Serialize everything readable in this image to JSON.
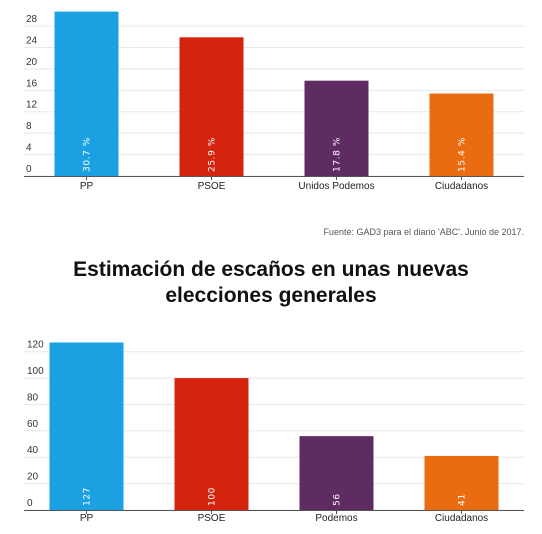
{
  "source_note": "Fuente: GAD3 para el diario 'ABC'. Junio de 2017.",
  "title_lines": [
    "Estimación de escaños en unas nuevas",
    "elecciones generales"
  ],
  "colors": {
    "PP": "#1ba1e2",
    "PSOE": "#d4240e",
    "Podemos": "#5e2b63",
    "Ciudadanos": "#ea6c10",
    "grid": "#e8e8e8",
    "axis": "#555555"
  },
  "chart_data": [
    {
      "type": "bar",
      "title": "",
      "categories": [
        "PP",
        "PSOE",
        "Unidos Podemos",
        "Ciudadanos"
      ],
      "values": [
        30.7,
        25.9,
        17.8,
        15.4
      ],
      "value_labels": [
        "30.7 %",
        "25.9 %",
        "17.8 %",
        "15.4 %"
      ],
      "ylim": [
        0,
        30
      ],
      "yticks": [
        0,
        4,
        8,
        12,
        16,
        20,
        24,
        28
      ],
      "grid": true,
      "legend": "none",
      "bar_colors": [
        "#1ba1e2",
        "#d4240e",
        "#5e2b63",
        "#ea6c10"
      ]
    },
    {
      "type": "bar",
      "title": "Estimación de escaños en unas nuevas elecciones generales",
      "categories": [
        "PP",
        "PSOE",
        "Podemos",
        "Ciudadanos"
      ],
      "values": [
        127,
        100,
        56,
        41
      ],
      "value_labels": [
        "127",
        "100",
        "56",
        "41"
      ],
      "ylim": [
        0,
        130
      ],
      "yticks": [
        0,
        20,
        40,
        60,
        80,
        100,
        120
      ],
      "grid": true,
      "legend": "none",
      "bar_colors": [
        "#1ba1e2",
        "#d4240e",
        "#5e2b63",
        "#ea6c10"
      ]
    }
  ]
}
